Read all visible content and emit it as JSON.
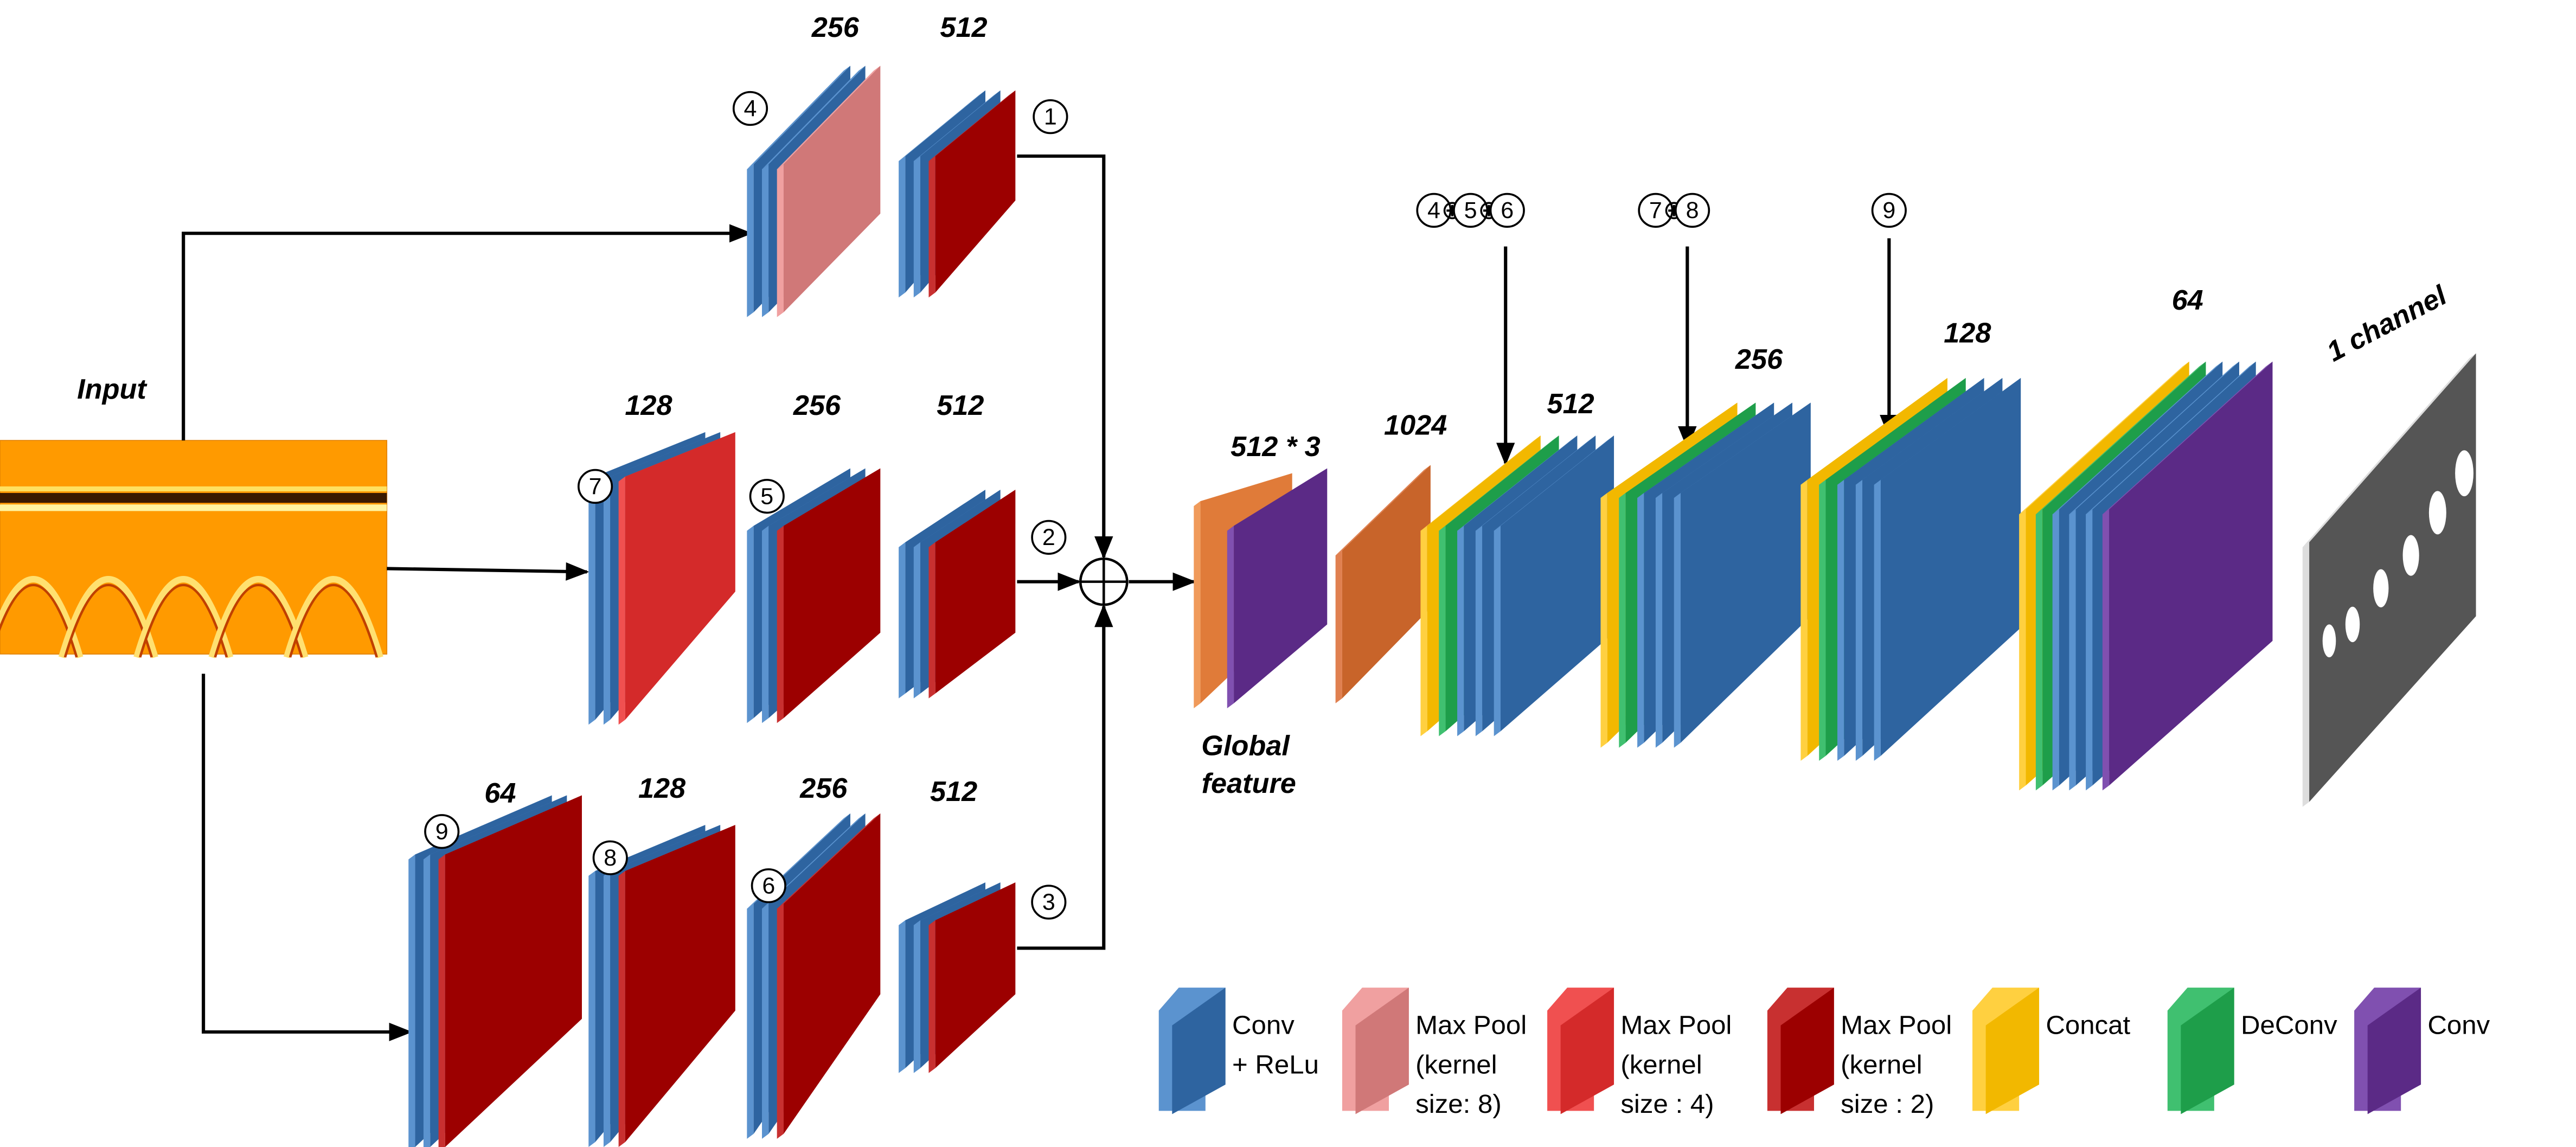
{
  "input": "Input",
  "channels": {
    "top_pool": "256",
    "top_conv": "512",
    "mid_pool": "128",
    "mid_2": "256",
    "mid_3": "512",
    "bot_1": "64",
    "bot_2": "128",
    "bot_3": "256",
    "bot_4": "512",
    "global_concat": "512 * 3",
    "fc": "1024",
    "dec_1": "512",
    "dec_2": "256",
    "dec_3": "128",
    "dec_4": "64",
    "output": "1 channel"
  },
  "global_feature": [
    "Global",
    "feature"
  ],
  "markers": {
    "m1": "1",
    "m2": "2",
    "m3": "3",
    "m4": "4",
    "m5": "5",
    "m6": "6",
    "m7": "7",
    "m8": "8",
    "m9": "9"
  },
  "skips": [
    [
      "4",
      "5",
      "6"
    ],
    [
      "7",
      "8"
    ],
    [
      "9"
    ]
  ],
  "legend": [
    {
      "label": [
        "Conv",
        "+ ReLu"
      ]
    },
    {
      "label": [
        "Max Pool",
        "(kernel",
        "size: 8)"
      ]
    },
    {
      "label": [
        "Max Pool",
        "(kernel",
        "size : 4)"
      ]
    },
    {
      "label": [
        "Max Pool",
        "(kernel",
        "size : 2)"
      ]
    },
    {
      "label": [
        "Concat"
      ]
    },
    {
      "label": [
        "DeConv"
      ]
    },
    {
      "label": [
        "Conv"
      ]
    }
  ]
}
